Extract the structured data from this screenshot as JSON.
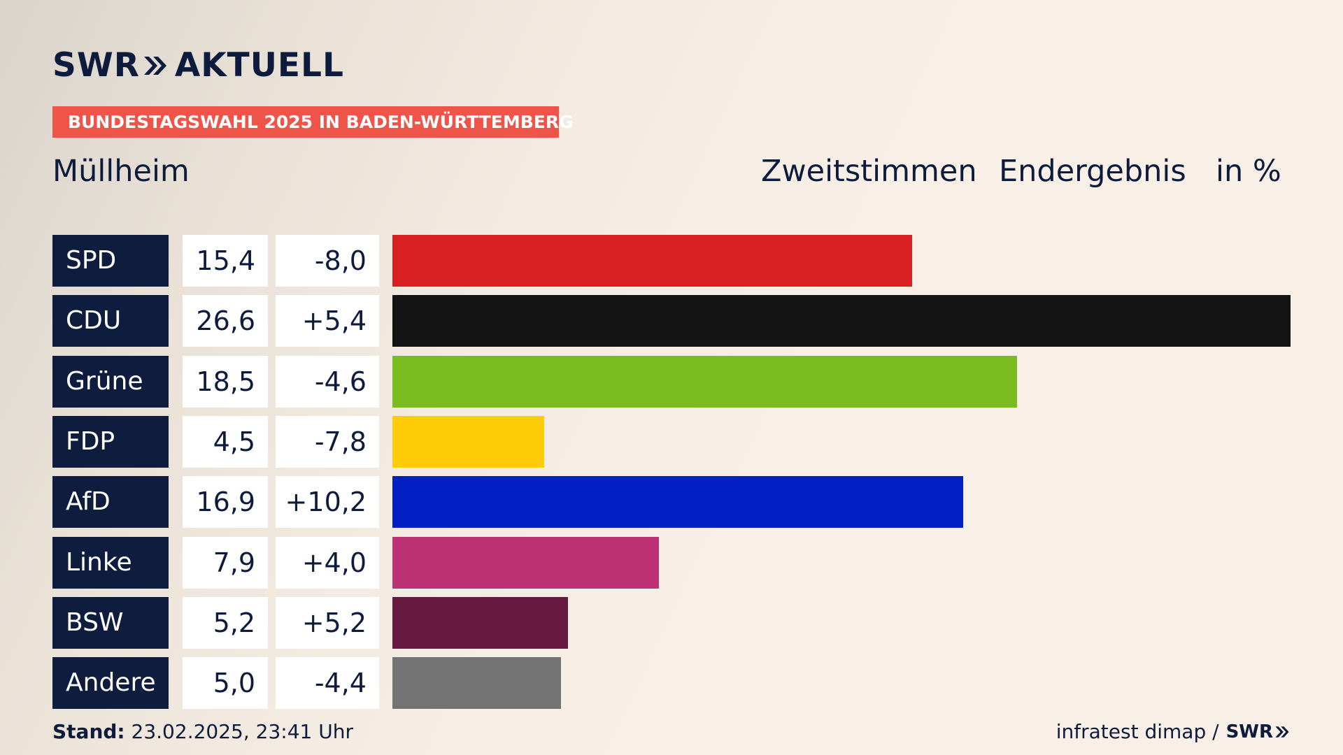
{
  "brand": {
    "name": "SWR",
    "product": "AKTUELL"
  },
  "badge": "BUNDESTAGSWAHL 2025 IN BADEN-WÜRTTEMBERG",
  "region": "Müllheim",
  "header": {
    "vote_type": "Zweitstimmen",
    "status": "Endergebnis",
    "unit": "in %"
  },
  "chart_data": {
    "type": "bar",
    "orientation": "horizontal",
    "categories": [
      "SPD",
      "CDU",
      "Grüne",
      "FDP",
      "AfD",
      "Linke",
      "BSW",
      "Andere"
    ],
    "values": [
      15.4,
      26.6,
      18.5,
      4.5,
      16.9,
      7.9,
      5.2,
      5.0
    ],
    "values_text": [
      "15,4",
      "26,6",
      "18,5",
      "4,5",
      "16,9",
      "7,9",
      "5,2",
      "5,0"
    ],
    "changes": [
      -8.0,
      5.4,
      -4.6,
      -7.8,
      10.2,
      4.0,
      5.2,
      -4.4
    ],
    "changes_text": [
      "-8,0",
      "+5,4",
      "-4,6",
      "-7,8",
      "+10,2",
      "+4,0",
      "+5,2",
      "-4,4"
    ],
    "colors": [
      "#d81f21",
      "#141414",
      "#7abc1e",
      "#ffcc0a",
      "#0020c6",
      "#bb3174",
      "#66193f",
      "#737373"
    ],
    "xlim": [
      0,
      26.6
    ]
  },
  "footer": {
    "stand_label": "Stand:",
    "stand_value": "23.02.2025, 23:41 Uhr",
    "source": "infratest dimap /",
    "source_brand": "SWR"
  }
}
